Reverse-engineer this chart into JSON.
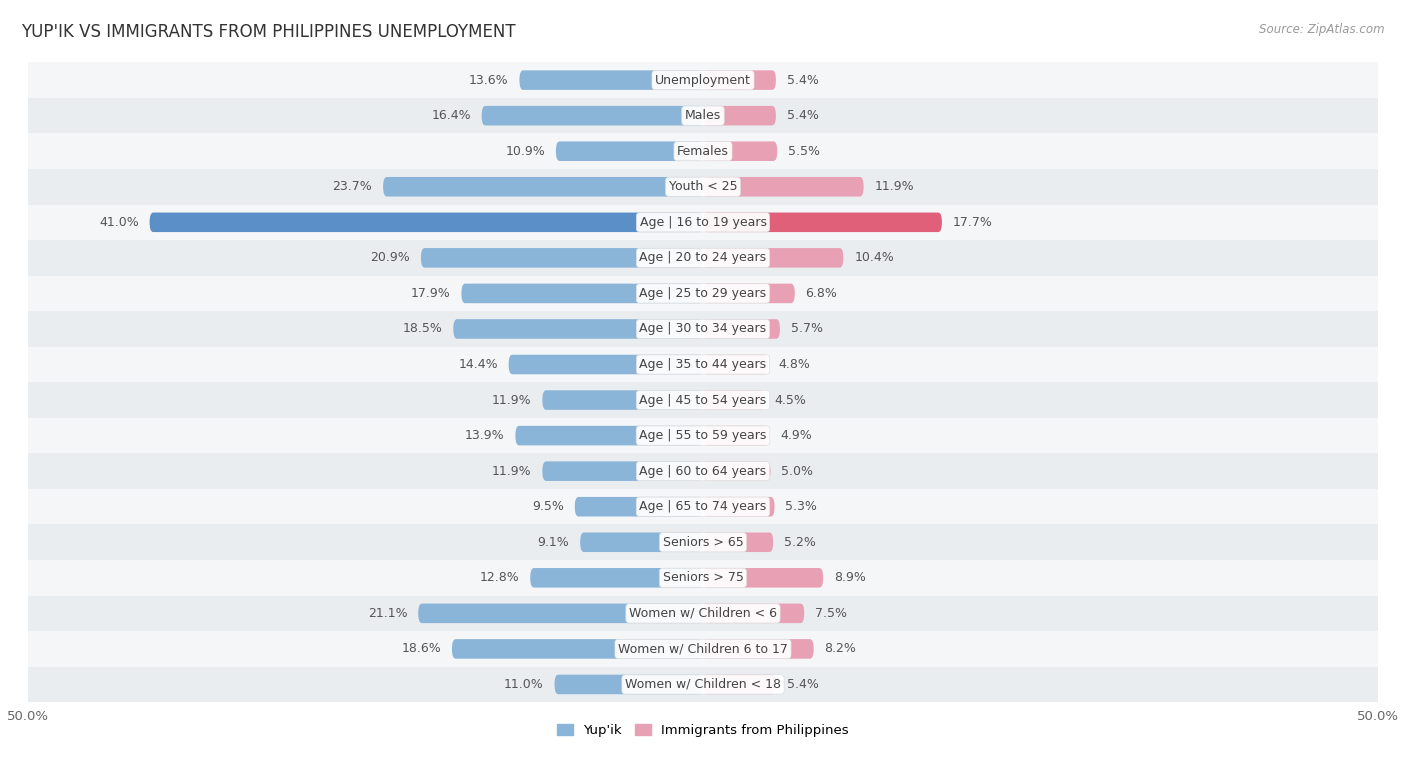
{
  "title": "YUP'IK VS IMMIGRANTS FROM PHILIPPINES UNEMPLOYMENT",
  "source": "Source: ZipAtlas.com",
  "categories": [
    "Unemployment",
    "Males",
    "Females",
    "Youth < 25",
    "Age | 16 to 19 years",
    "Age | 20 to 24 years",
    "Age | 25 to 29 years",
    "Age | 30 to 34 years",
    "Age | 35 to 44 years",
    "Age | 45 to 54 years",
    "Age | 55 to 59 years",
    "Age | 60 to 64 years",
    "Age | 65 to 74 years",
    "Seniors > 65",
    "Seniors > 75",
    "Women w/ Children < 6",
    "Women w/ Children 6 to 17",
    "Women w/ Children < 18"
  ],
  "yupik_values": [
    13.6,
    16.4,
    10.9,
    23.7,
    41.0,
    20.9,
    17.9,
    18.5,
    14.4,
    11.9,
    13.9,
    11.9,
    9.5,
    9.1,
    12.8,
    21.1,
    18.6,
    11.0
  ],
  "philippines_values": [
    5.4,
    5.4,
    5.5,
    11.9,
    17.7,
    10.4,
    6.8,
    5.7,
    4.8,
    4.5,
    4.9,
    5.0,
    5.3,
    5.2,
    8.9,
    7.5,
    8.2,
    5.4
  ],
  "yupik_color": "#8ab4d8",
  "philippines_color": "#e8a0b4",
  "yupik_highlight_color": "#5b8fc7",
  "philippines_highlight_color": "#e0607a",
  "row_bg_odd": "#eaedf0",
  "row_bg_even": "#f5f6f8",
  "background_color": "#ffffff",
  "label_fontsize": 9.0,
  "title_fontsize": 12,
  "value_fontsize": 9.0,
  "max_value": 50.0,
  "legend_yupik": "Yup'ik",
  "legend_philippines": "Immigrants from Philippines",
  "center_label_color": "#444444",
  "value_label_color": "#555555"
}
